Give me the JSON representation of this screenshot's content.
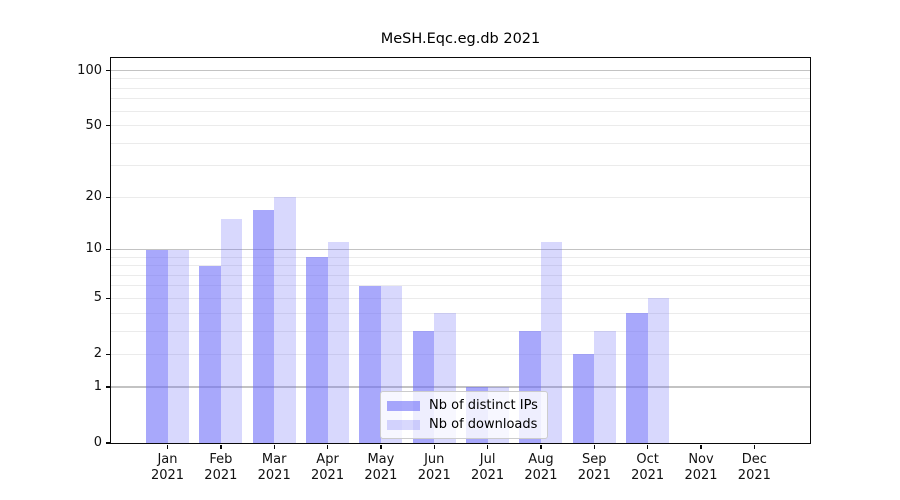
{
  "chart_data": {
    "type": "bar",
    "title": "MeSH.Eqc.eg.db 2021",
    "categories": [
      "Jan",
      "Feb",
      "Mar",
      "Apr",
      "May",
      "Jun",
      "Jul",
      "Aug",
      "Sep",
      "Oct",
      "Nov",
      "Dec"
    ],
    "year": "2021",
    "series": [
      {
        "name": "Nb of distinct IPs",
        "color": "rgba(105,105,248,0.58)",
        "values": [
          10,
          8,
          17,
          9,
          6,
          3,
          1,
          3,
          2,
          4,
          0,
          0
        ]
      },
      {
        "name": "Nb of downloads",
        "color": "rgba(105,105,248,0.26)",
        "values": [
          10,
          15,
          20,
          11,
          6,
          4,
          1,
          11,
          3,
          5,
          0,
          0
        ]
      }
    ],
    "yscale": "log1p",
    "ylim": [
      0,
      117
    ],
    "yticks": [
      "100",
      "50",
      "20",
      "10",
      "5",
      "2",
      "1",
      "0"
    ],
    "grid": true,
    "legend_position": "bottom-center",
    "colors": {
      "bar_base": "#6969f8",
      "major_grid": "#c3c3c3",
      "minor_grid": "#ebebeb",
      "spine": "#0a0a0a"
    }
  }
}
